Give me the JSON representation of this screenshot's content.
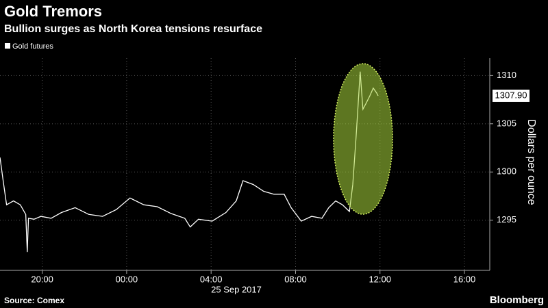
{
  "chart_data": {
    "type": "line",
    "title": "Gold Tremors",
    "subtitle": "Bullion surges as North Korea tensions resurface",
    "y_label": "Dollars per ounce",
    "x_sublabel": "25 Sep 2017",
    "source": "Source: Comex",
    "brand": "Bloomberg",
    "grid": true,
    "xlim": [
      -6,
      17.2
    ],
    "ylim": [
      1289.8,
      1311.8
    ],
    "xticks": [
      {
        "value": -4,
        "label": "20:00"
      },
      {
        "value": 0,
        "label": "00:00"
      },
      {
        "value": 4,
        "label": "04:00"
      },
      {
        "value": 8,
        "label": "08:00"
      },
      {
        "value": 12,
        "label": "12:00"
      },
      {
        "value": 16,
        "label": "16:00"
      }
    ],
    "yticks": [
      1295,
      1300,
      1305,
      1310
    ],
    "current_price": {
      "value": 1307.9,
      "label": "1307.90"
    },
    "series": [
      {
        "name": "Gold futures",
        "color": "#ffffff",
        "x": [
          -6.0,
          -5.85,
          -5.69,
          -5.36,
          -5.04,
          -4.78,
          -4.71,
          -4.65,
          -4.39,
          -4.06,
          -3.58,
          -3.09,
          -2.44,
          -1.79,
          -1.14,
          -0.49,
          0.16,
          0.81,
          1.45,
          2.1,
          2.75,
          3.01,
          3.4,
          4.05,
          4.7,
          5.19,
          5.51,
          6.0,
          6.49,
          6.97,
          7.46,
          7.79,
          8.27,
          8.76,
          9.25,
          9.57,
          9.9,
          10.22,
          10.55,
          10.71,
          10.87,
          10.97,
          11.06,
          11.19,
          11.36,
          11.52,
          11.68,
          11.84,
          11.91
        ],
        "values": [
          1301.5,
          1299.1,
          1296.6,
          1297,
          1296.6,
          1295.6,
          1291.7,
          1295.2,
          1295.1,
          1295.4,
          1295.2,
          1295.8,
          1296.3,
          1295.6,
          1295.4,
          1296.1,
          1297.3,
          1296.6,
          1296.4,
          1295.7,
          1295.2,
          1294.3,
          1295.1,
          1294.9,
          1295.8,
          1297,
          1299.1,
          1298.7,
          1298,
          1297.7,
          1297.7,
          1296.3,
          1294.9,
          1295.4,
          1295.2,
          1296.3,
          1297,
          1296.6,
          1295.9,
          1298.7,
          1303.7,
          1307.2,
          1310.4,
          1306.5,
          1307.2,
          1307.9,
          1308.7,
          1308.2,
          1307.9
        ]
      }
    ]
  }
}
